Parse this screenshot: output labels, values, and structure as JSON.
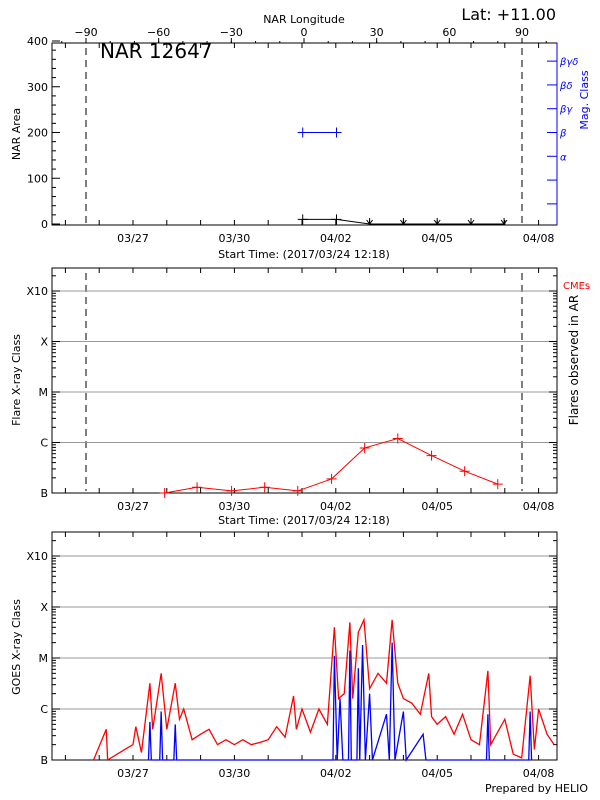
{
  "header": {
    "lat_label": "Lat: +11.00",
    "region_label": "NAR 12647",
    "footer": "Prepared by HELIO"
  },
  "colors": {
    "flare": "#ff0000",
    "goes_long": "#ff0000",
    "goes_short": "#0000ff",
    "mag_class": "#0000ff",
    "grid": "#999999",
    "limb_line": "#000000"
  },
  "chart_data": [
    {
      "type": "line",
      "title": "",
      "xlabel": "Start Time: (2017/03/24 12:18)",
      "ylabel": "NAR Area",
      "ylim": [
        0,
        400
      ],
      "yticks": [
        "0",
        "100",
        "200",
        "300",
        "400"
      ],
      "xlim": [
        "2017-03-24T12:18",
        "2017-04-08T12:00"
      ],
      "xticks": [
        "03/27",
        "03/30",
        "04/02",
        "04/05",
        "04/08"
      ],
      "top_axis": {
        "label": "NAR Longitude",
        "range": [
          -90,
          90
        ],
        "ticks": [
          "-90",
          "-60",
          "-30",
          "0",
          "30",
          "60",
          "90"
        ]
      },
      "limb_longitudes": [
        -90,
        90
      ],
      "right_axis": {
        "label": "Mag. Class",
        "classes": [
          "α",
          "β",
          "βγ",
          "βδ",
          "βγδ"
        ]
      },
      "area_series": [
        {
          "t": "2017-04-01T00:30",
          "area": 10
        },
        {
          "t": "2017-04-02T00:30",
          "area": 10
        },
        {
          "t": "2017-04-03T00:00",
          "area": 0
        },
        {
          "t": "2017-04-04T00:00",
          "area": 0
        },
        {
          "t": "2017-04-05T00:00",
          "area": 0
        },
        {
          "t": "2017-04-06T00:00",
          "area": 0
        },
        {
          "t": "2017-04-06T23:30",
          "area": 0
        }
      ],
      "mag_series": [
        {
          "t": "2017-04-01T00:30",
          "class": "β"
        },
        {
          "t": "2017-04-02T00:30",
          "class": "β"
        }
      ]
    },
    {
      "type": "line",
      "title": "",
      "xlabel": "Start Time: (2017/03/24 12:18)",
      "ylabel": "Flare X-ray Class",
      "right_label": "Flares observed in AR",
      "right_legend": "CMEs",
      "yscale": "log",
      "ylim": [
        1e-07,
        0.003
      ],
      "yticks": [
        {
          "label": "B",
          "v": 1e-07
        },
        {
          "label": "C",
          "v": 1e-06
        },
        {
          "label": "M",
          "v": 1e-05
        },
        {
          "label": "X",
          "v": 0.0001
        },
        {
          "label": "X10",
          "v": 0.001
        }
      ],
      "grid": true,
      "xticks": [
        "03/27",
        "03/30",
        "04/02",
        "04/05",
        "04/08"
      ],
      "series": [
        {
          "points": [
            [
              "2017-03-27T22:30",
              1e-07
            ],
            [
              "2017-03-28T21:30",
              1.3e-07
            ],
            [
              "2017-03-29T22:00",
              1.1e-07
            ],
            [
              "2017-03-30T21:30",
              1.3e-07
            ],
            [
              "2017-03-31T21:00",
              1.1e-07
            ],
            [
              "2017-04-01T21:00",
              1.9e-07
            ],
            [
              "2017-04-02T20:30",
              7.8e-07
            ],
            [
              "2017-04-03T20:00",
              1.2e-06
            ],
            [
              "2017-04-04T20:00",
              5.5e-07
            ],
            [
              "2017-04-05T19:30",
              2.7e-07
            ],
            [
              "2017-04-06T19:00",
              1.5e-07
            ]
          ]
        }
      ]
    },
    {
      "type": "line",
      "title": "",
      "ylabel": "GOES X-ray Class",
      "yscale": "log",
      "ylim": [
        1e-07,
        0.003
      ],
      "yticks": [
        {
          "label": "B",
          "v": 1e-07
        },
        {
          "label": "C",
          "v": 1e-06
        },
        {
          "label": "M",
          "v": 1e-05
        },
        {
          "label": "X",
          "v": 0.0001
        },
        {
          "label": "X10",
          "v": 0.001
        }
      ],
      "grid": true,
      "xticks": [
        "03/27",
        "03/30",
        "04/02",
        "04/05",
        "04/08"
      ],
      "series": [
        {
          "channel": "long",
          "points": [
            [
              "2017-03-25T20:00",
              1e-07
            ],
            [
              "2017-03-26T05:00",
              4e-07
            ],
            [
              "2017-03-26T06:00",
              1e-07
            ],
            [
              "2017-03-26T18:00",
              1.6e-07
            ],
            [
              "2017-03-27T00:00",
              2e-07
            ],
            [
              "2017-03-27T02:00",
              4.5e-07
            ],
            [
              "2017-03-27T06:00",
              1.4e-07
            ],
            [
              "2017-03-27T12:00",
              3.2e-06
            ],
            [
              "2017-03-27T14:00",
              4e-07
            ],
            [
              "2017-03-27T20:00",
              5e-06
            ],
            [
              "2017-03-28T00:00",
              4e-07
            ],
            [
              "2017-03-28T06:00",
              3.2e-06
            ],
            [
              "2017-03-28T09:00",
              6.3e-07
            ],
            [
              "2017-03-28T12:00",
              1e-06
            ],
            [
              "2017-03-28T18:00",
              2.5e-07
            ],
            [
              "2017-03-29T00:00",
              3.2e-07
            ],
            [
              "2017-03-29T06:00",
              4e-07
            ],
            [
              "2017-03-29T12:00",
              2e-07
            ],
            [
              "2017-03-29T18:00",
              2.5e-07
            ],
            [
              "2017-03-30T00:00",
              2e-07
            ],
            [
              "2017-03-30T06:00",
              2.5e-07
            ],
            [
              "2017-03-30T12:00",
              2e-07
            ],
            [
              "2017-03-30T18:00",
              2.2e-07
            ],
            [
              "2017-03-31T00:00",
              2.5e-07
            ],
            [
              "2017-03-31T06:00",
              4.5e-07
            ],
            [
              "2017-03-31T12:00",
              2.8e-07
            ],
            [
              "2017-03-31T18:00",
              1.8e-06
            ],
            [
              "2017-03-31T20:00",
              4e-07
            ],
            [
              "2017-04-01T00:00",
              1e-06
            ],
            [
              "2017-04-01T06:00",
              3.5e-07
            ],
            [
              "2017-04-01T12:00",
              1e-06
            ],
            [
              "2017-04-01T18:00",
              5e-07
            ],
            [
              "2017-04-01T23:00",
              4e-05
            ],
            [
              "2017-04-02T02:00",
              1.6e-06
            ],
            [
              "2017-04-02T06:00",
              2e-06
            ],
            [
              "2017-04-02T10:00",
              5e-05
            ],
            [
              "2017-04-02T12:00",
              1.6e-06
            ],
            [
              "2017-04-02T16:00",
              3.2e-05
            ],
            [
              "2017-04-02T20:00",
              5.6e-05
            ],
            [
              "2017-04-03T00:00",
              2.5e-06
            ],
            [
              "2017-04-03T06:00",
              5e-06
            ],
            [
              "2017-04-03T12:00",
              3.2e-06
            ],
            [
              "2017-04-03T16:00",
              5.6e-05
            ],
            [
              "2017-04-03T20:00",
              3.2e-06
            ],
            [
              "2017-04-04T00:00",
              1.6e-06
            ],
            [
              "2017-04-04T06:00",
              1.3e-06
            ],
            [
              "2017-04-04T12:00",
              7.9e-07
            ],
            [
              "2017-04-04T18:00",
              5e-06
            ],
            [
              "2017-04-04T20:00",
              7.1e-07
            ],
            [
              "2017-04-05T00:00",
              5e-07
            ],
            [
              "2017-04-05T06:00",
              7.1e-07
            ],
            [
              "2017-04-05T12:00",
              3.2e-07
            ],
            [
              "2017-04-05T18:00",
              7.9e-07
            ],
            [
              "2017-04-06T00:00",
              2.5e-07
            ],
            [
              "2017-04-06T06:00",
              2e-07
            ],
            [
              "2017-04-06T12:00",
              5.6e-06
            ],
            [
              "2017-04-06T14:00",
              2e-07
            ],
            [
              "2017-04-07T00:00",
              6.3e-07
            ],
            [
              "2017-04-07T06:00",
              1.3e-07
            ],
            [
              "2017-04-07T12:00",
              1.1e-07
            ],
            [
              "2017-04-07T18:00",
              4.5e-06
            ],
            [
              "2017-04-07T21:00",
              1.6e-07
            ],
            [
              "2017-04-08T00:00",
              1e-06
            ],
            [
              "2017-04-08T06:00",
              3.2e-07
            ],
            [
              "2017-04-08T11:00",
              2e-07
            ]
          ]
        },
        {
          "channel": "short",
          "points": [
            [
              "2017-03-27T11:00",
              1e-07
            ],
            [
              "2017-03-27T12:00",
              5.6e-07
            ],
            [
              "2017-03-27T13:00",
              1e-07
            ],
            [
              "2017-03-27T19:00",
              1e-07
            ],
            [
              "2017-03-27T20:00",
              8.9e-07
            ],
            [
              "2017-03-27T21:00",
              1e-07
            ],
            [
              "2017-03-28T05:00",
              1e-07
            ],
            [
              "2017-03-28T06:00",
              5e-07
            ],
            [
              "2017-03-28T07:00",
              1e-07
            ],
            [
              "2017-04-01T22:00",
              1e-07
            ],
            [
              "2017-04-01T23:00",
              1.1e-05
            ],
            [
              "2017-04-02T01:00",
              1e-07
            ],
            [
              "2017-04-02T03:00",
              1.6e-06
            ],
            [
              "2017-04-02T05:00",
              1e-07
            ],
            [
              "2017-04-02T09:00",
              1e-07
            ],
            [
              "2017-04-02T10:00",
              1.4e-05
            ],
            [
              "2017-04-02T11:00",
              1e-07
            ],
            [
              "2017-04-02T15:00",
              1e-07
            ],
            [
              "2017-04-02T16:00",
              6.3e-06
            ],
            [
              "2017-04-02T17:00",
              1e-07
            ],
            [
              "2017-04-02T19:00",
              1.8e-05
            ],
            [
              "2017-04-02T21:00",
              1e-07
            ],
            [
              "2017-04-03T00:00",
              2e-06
            ],
            [
              "2017-04-03T02:00",
              1e-07
            ],
            [
              "2017-04-03T12:00",
              7.9e-07
            ],
            [
              "2017-04-03T14:00",
              1e-07
            ],
            [
              "2017-04-03T16:00",
              2e-05
            ],
            [
              "2017-04-03T18:00",
              1e-07
            ],
            [
              "2017-04-04T00:00",
              8.9e-07
            ],
            [
              "2017-04-04T02:00",
              1e-07
            ],
            [
              "2017-04-04T14:00",
              3.2e-07
            ],
            [
              "2017-04-04T16:00",
              1e-07
            ],
            [
              "2017-04-06T11:00",
              1e-07
            ],
            [
              "2017-04-06T12:00",
              7.9e-07
            ],
            [
              "2017-04-06T13:00",
              1e-07
            ],
            [
              "2017-04-07T17:00",
              1e-07
            ],
            [
              "2017-04-07T18:00",
              8.9e-07
            ],
            [
              "2017-04-07T19:00",
              1e-07
            ]
          ]
        }
      ]
    }
  ]
}
